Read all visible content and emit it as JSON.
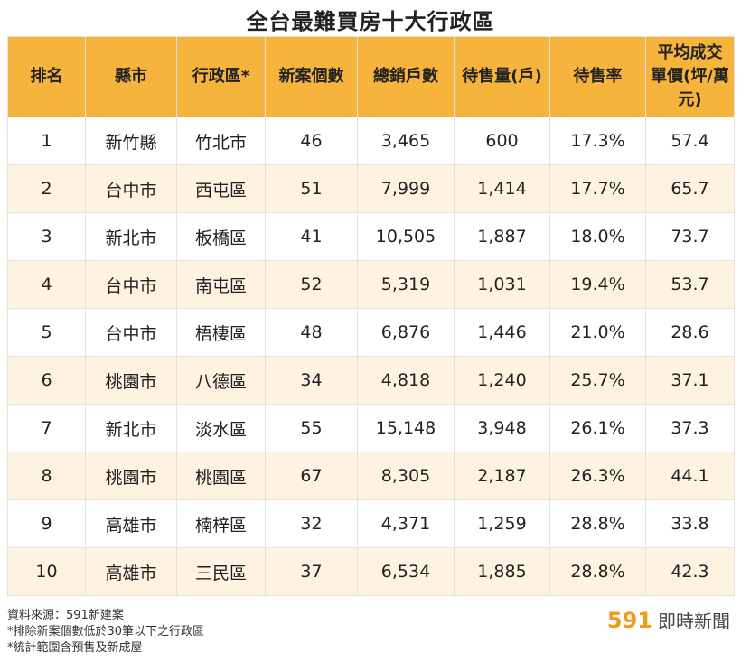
{
  "page": {
    "title": "全台最難買房十大行政區"
  },
  "chart_data": {
    "type": "table",
    "title": "全台最難買房十大行政區",
    "columns": [
      "排名",
      "縣市",
      "行政區*",
      "新案個數",
      "總銷戶數",
      "待售量(戶)",
      "待售率",
      "平均成交單價(坪/萬元)"
    ],
    "rows": [
      [
        "1",
        "新竹縣",
        "竹北市",
        "46",
        "3,465",
        "600",
        "17.3%",
        "57.4"
      ],
      [
        "2",
        "台中市",
        "西屯區",
        "51",
        "7,999",
        "1,414",
        "17.7%",
        "65.7"
      ],
      [
        "3",
        "新北市",
        "板橋區",
        "41",
        "10,505",
        "1,887",
        "18.0%",
        "73.7"
      ],
      [
        "4",
        "台中市",
        "南屯區",
        "52",
        "5,319",
        "1,031",
        "19.4%",
        "53.7"
      ],
      [
        "5",
        "台中市",
        "梧棲區",
        "48",
        "6,876",
        "1,446",
        "21.0%",
        "28.6"
      ],
      [
        "6",
        "桃園市",
        "八德區",
        "34",
        "4,818",
        "1,240",
        "25.7%",
        "37.1"
      ],
      [
        "7",
        "新北市",
        "淡水區",
        "55",
        "15,148",
        "3,948",
        "26.1%",
        "37.3"
      ],
      [
        "8",
        "桃園市",
        "桃園區",
        "67",
        "8,305",
        "2,187",
        "26.3%",
        "44.1"
      ],
      [
        "9",
        "高雄市",
        "楠梓區",
        "32",
        "4,371",
        "1,259",
        "28.8%",
        "33.8"
      ],
      [
        "10",
        "高雄市",
        "三民區",
        "37",
        "6,534",
        "1,885",
        "28.8%",
        "42.3"
      ]
    ]
  },
  "notes": [
    "資料來源：591新建案",
    "*排除新案個數低於30筆以下之行政區",
    "*統計範圍含預售及新成屋"
  ],
  "brand": {
    "number": "591",
    "text": "即時新聞"
  },
  "colors": {
    "header": "#f6b43c",
    "stripe": "#fdf3e0",
    "brand": "#f39a1c"
  }
}
